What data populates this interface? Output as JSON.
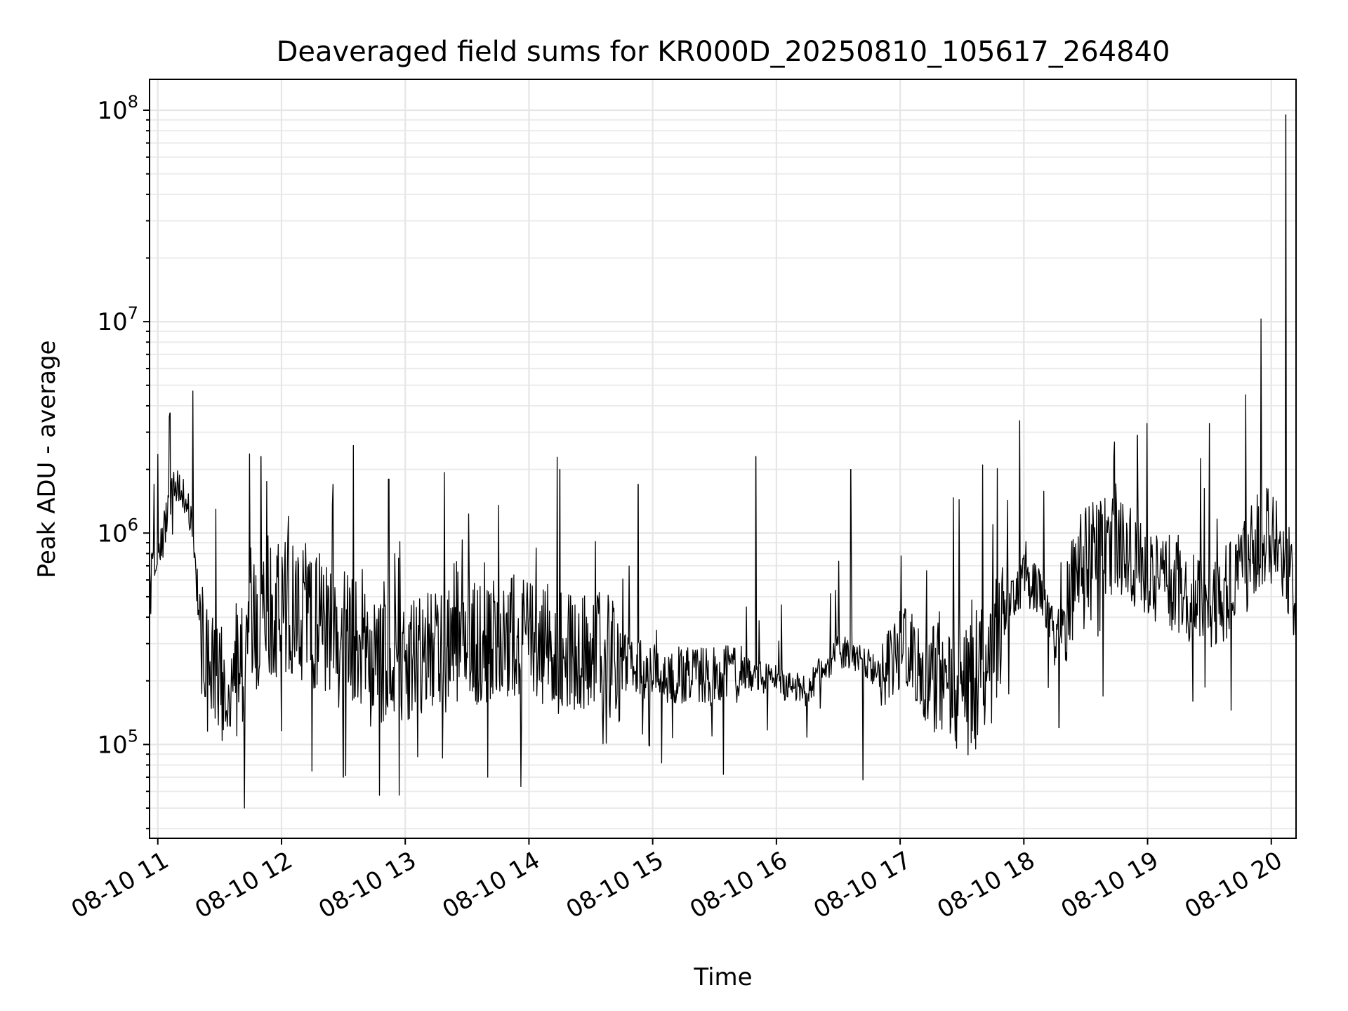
{
  "chart_data": {
    "type": "line",
    "title": "Deaveraged field sums for KR000D_20250810_105617_264840",
    "xlabel": "Time",
    "ylabel": "Peak ADU - average",
    "yscale": "log",
    "xlim": [
      "2025-08-10T10:56",
      "2025-08-10T20:12"
    ],
    "ylim": [
      36000,
      140000000
    ],
    "grid": true,
    "line_color": "#000000",
    "x_ticks": [
      {
        "t": "2025-08-10T11:00",
        "label": "08-10 11"
      },
      {
        "t": "2025-08-10T12:00",
        "label": "08-10 12"
      },
      {
        "t": "2025-08-10T13:00",
        "label": "08-10 13"
      },
      {
        "t": "2025-08-10T14:00",
        "label": "08-10 14"
      },
      {
        "t": "2025-08-10T15:00",
        "label": "08-10 15"
      },
      {
        "t": "2025-08-10T16:00",
        "label": "08-10 16"
      },
      {
        "t": "2025-08-10T17:00",
        "label": "08-10 17"
      },
      {
        "t": "2025-08-10T18:00",
        "label": "08-10 18"
      },
      {
        "t": "2025-08-10T19:00",
        "label": "08-10 19"
      },
      {
        "t": "2025-08-10T20:00",
        "label": "08-10 20"
      }
    ],
    "y_ticks": [
      {
        "v": 100000,
        "base": "10",
        "exp": "5"
      },
      {
        "v": 1000000,
        "base": "10",
        "exp": "6"
      },
      {
        "v": 10000000,
        "base": "10",
        "exp": "7"
      },
      {
        "v": 100000000,
        "base": "10",
        "exp": "8"
      }
    ],
    "series": [
      {
        "x": [
          "2025-08-10T10:56",
          "2025-08-10T11:00",
          "2025-08-10T11:03",
          "2025-08-10T11:06",
          "2025-08-10T11:10",
          "2025-08-10T11:15",
          "2025-08-10T11:18",
          "2025-08-10T11:22",
          "2025-08-10T11:25",
          "2025-08-10T11:30",
          "2025-08-10T11:35",
          "2025-08-10T11:40",
          "2025-08-10T11:45",
          "2025-08-10T11:50",
          "2025-08-10T12:00",
          "2025-08-10T12:15",
          "2025-08-10T12:30",
          "2025-08-10T12:45",
          "2025-08-10T13:00",
          "2025-08-10T13:15",
          "2025-08-10T13:30",
          "2025-08-10T13:45",
          "2025-08-10T14:00",
          "2025-08-10T14:15",
          "2025-08-10T14:30",
          "2025-08-10T14:45",
          "2025-08-10T15:00",
          "2025-08-10T15:15",
          "2025-08-10T15:30",
          "2025-08-10T15:45",
          "2025-08-10T16:00",
          "2025-08-10T16:15",
          "2025-08-10T16:30",
          "2025-08-10T16:40",
          "2025-08-10T16:50",
          "2025-08-10T17:00",
          "2025-08-10T17:15",
          "2025-08-10T17:30",
          "2025-08-10T17:40",
          "2025-08-10T17:50",
          "2025-08-10T18:00",
          "2025-08-10T18:10",
          "2025-08-10T18:15",
          "2025-08-10T18:30",
          "2025-08-10T18:45",
          "2025-08-10T19:00",
          "2025-08-10T19:15",
          "2025-08-10T19:30",
          "2025-08-10T19:45",
          "2025-08-10T19:55",
          "2025-08-10T20:05",
          "2025-08-10T20:12"
        ],
        "y": [
          700000,
          800000,
          1000000,
          1500000,
          1600000,
          1400000,
          700000,
          300000,
          200000,
          200000,
          200000,
          250000,
          300000,
          450000,
          450000,
          400000,
          300000,
          250000,
          250000,
          280000,
          300000,
          300000,
          350000,
          300000,
          280000,
          250000,
          220000,
          210000,
          210000,
          220000,
          200000,
          180000,
          280000,
          250000,
          220000,
          300000,
          200000,
          190000,
          200000,
          400000,
          600000,
          500000,
          300000,
          800000,
          900000,
          700000,
          550000,
          450000,
          600000,
          1000000,
          900000,
          500000
        ],
        "spikes": [
          {
            "t": "2025-08-10T11:06",
            "v": 3700000
          },
          {
            "t": "2025-08-10T11:17",
            "v": 4700000
          },
          {
            "t": "2025-08-10T11:50",
            "v": 2300000
          },
          {
            "t": "2025-08-10T12:25",
            "v": 1700000
          },
          {
            "t": "2025-08-10T12:52",
            "v": 1800000
          },
          {
            "t": "2025-08-10T14:15",
            "v": 2000000
          },
          {
            "t": "2025-08-10T14:53",
            "v": 1700000
          },
          {
            "t": "2025-08-10T15:50",
            "v": 2300000
          },
          {
            "t": "2025-08-10T16:36",
            "v": 2000000
          },
          {
            "t": "2025-08-10T17:40",
            "v": 2100000
          },
          {
            "t": "2025-08-10T17:58",
            "v": 3400000
          },
          {
            "t": "2025-08-10T18:55",
            "v": 2900000
          },
          {
            "t": "2025-08-10T19:30",
            "v": 3300000
          },
          {
            "t": "2025-08-10T19:55",
            "v": 10300000
          },
          {
            "t": "2025-08-10T20:07",
            "v": 95000000
          }
        ],
        "dips": [
          {
            "t": "2025-08-10T11:42",
            "v": 50000
          },
          {
            "t": "2025-08-10T12:30",
            "v": 70000
          },
          {
            "t": "2025-08-10T13:40",
            "v": 70000
          },
          {
            "t": "2025-08-10T16:42",
            "v": 68000
          },
          {
            "t": "2025-08-10T18:17",
            "v": 120000
          },
          {
            "t": "2025-08-10T19:22",
            "v": 160000
          }
        ]
      }
    ]
  }
}
